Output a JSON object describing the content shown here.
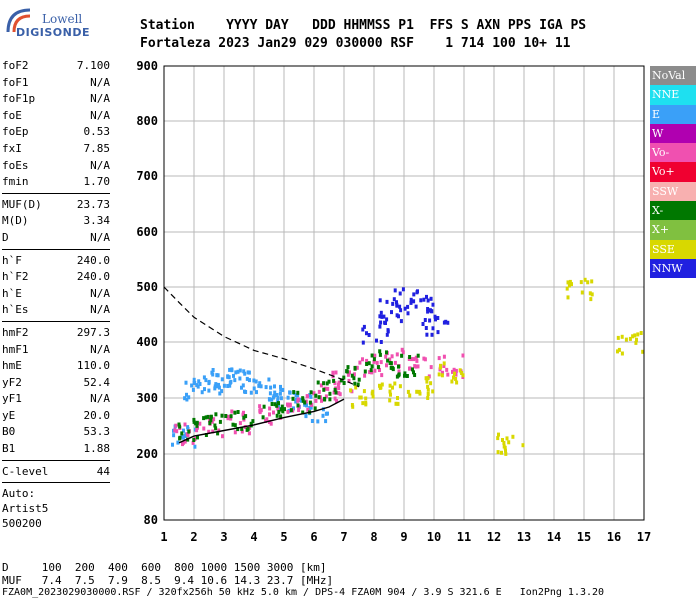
{
  "logo": {
    "line1": "Lowell",
    "line2": "DIGISONDE"
  },
  "header": {
    "labels": "Station    YYYY DAY   DDD HHMMSS P1  FFS S AXN PPS IGA PS",
    "values": "Fortaleza 2023 Jan29 029 030000 RSF    1 714 100 10+ 11"
  },
  "params": [
    {
      "name": "foF2",
      "value": "7.100"
    },
    {
      "name": "foF1",
      "value": "N/A"
    },
    {
      "name": "foF1p",
      "value": "N/A"
    },
    {
      "name": "foE",
      "value": "N/A"
    },
    {
      "name": "foEp",
      "value": "0.53"
    },
    {
      "name": "fxI",
      "value": "7.85"
    },
    {
      "name": "foEs",
      "value": "N/A"
    },
    {
      "name": "fmin",
      "value": "1.70"
    },
    {
      "name": "MUF(D)",
      "value": "23.73",
      "sep": true
    },
    {
      "name": "M(D)",
      "value": "3.34"
    },
    {
      "name": "D",
      "value": "N/A"
    },
    {
      "name": "h`F",
      "value": "240.0",
      "sep": true
    },
    {
      "name": "h`F2",
      "value": "240.0"
    },
    {
      "name": "h`E",
      "value": "N/A"
    },
    {
      "name": "h`Es",
      "value": "N/A"
    },
    {
      "name": "hmF2",
      "value": "297.3",
      "sep": true
    },
    {
      "name": "hmF1",
      "value": "N/A"
    },
    {
      "name": "hmE",
      "value": "110.0"
    },
    {
      "name": "yF2",
      "value": "52.4"
    },
    {
      "name": "yF1",
      "value": "N/A"
    },
    {
      "name": "yE",
      "value": "20.0"
    },
    {
      "name": "B0",
      "value": "53.3"
    },
    {
      "name": "B1",
      "value": "1.88"
    },
    {
      "name": "C-level",
      "value": "44",
      "sep": true
    }
  ],
  "auto": {
    "line1": "Auto:",
    "line2": "Artist5",
    "line3": "500200"
  },
  "legend": [
    {
      "label": "NoVal",
      "color": "#8c8c8c"
    },
    {
      "label": "NNE",
      "color": "#1ee0f0"
    },
    {
      "label": "E",
      "color": "#3aa0f8"
    },
    {
      "label": "W",
      "color": "#b000b0"
    },
    {
      "label": "Vo-",
      "color": "#f050b0"
    },
    {
      "label": "Vo+",
      "color": "#f00030"
    },
    {
      "label": "SSW",
      "color": "#f8b0b0"
    },
    {
      "label": "X-",
      "color": "#007800"
    },
    {
      "label": "X+",
      "color": "#80c040"
    },
    {
      "label": "SSE",
      "color": "#d8d800"
    },
    {
      "label": "NNW",
      "color": "#2020e0"
    }
  ],
  "bottom": {
    "d_line": "D     100  200  400  600  800 1000 1500 3000 [km]",
    "muf_line": "MUF   7.4  7.5  7.9  8.5  9.4 10.6 14.3 23.7 [MHz]",
    "footer": "FZA0M_2023029030000.RSF / 320fx256h 50 kHz 5.0 km / DPS-4 FZA0M 904 / 3.9 S 321.6 E   Ion2Png 1.3.20"
  },
  "chart_data": {
    "type": "scatter",
    "xlim": [
      1,
      17
    ],
    "ylim": [
      80,
      900
    ],
    "x_ticks": [
      "1",
      "2",
      "3",
      "4",
      "5",
      "6",
      "7",
      "8",
      "9",
      "10",
      "11",
      "12",
      "13",
      "14",
      "15",
      "16",
      "17"
    ],
    "y_ticks": [
      "80",
      "200",
      "300",
      "400",
      "500",
      "600",
      "700",
      "800",
      "900"
    ],
    "y_tick_values": [
      80,
      200,
      300,
      400,
      500,
      600,
      700,
      800,
      900
    ],
    "grid": true,
    "series": [
      {
        "name": "E",
        "color": "#3aa0f8",
        "values": [
          [
            1.6,
            235
          ],
          [
            2.0,
            320
          ],
          [
            2.5,
            330
          ],
          [
            3.0,
            340
          ],
          [
            3.5,
            335
          ],
          [
            4.0,
            330
          ],
          [
            4.5,
            320
          ],
          [
            5.0,
            300
          ],
          [
            5.5,
            290
          ],
          [
            6.0,
            280
          ]
        ]
      },
      {
        "name": "Vo-",
        "color": "#f050b0",
        "values": [
          [
            1.7,
            240
          ],
          [
            2.5,
            250
          ],
          [
            3.5,
            260
          ],
          [
            4.5,
            275
          ],
          [
            5.5,
            290
          ],
          [
            6.3,
            310
          ],
          [
            7.0,
            330
          ],
          [
            7.8,
            360
          ],
          [
            8.5,
            370
          ],
          [
            9.5,
            360
          ],
          [
            10.5,
            360
          ]
        ]
      },
      {
        "name": "X-",
        "color": "#007800",
        "values": [
          [
            1.8,
            245
          ],
          [
            2.6,
            255
          ],
          [
            3.6,
            265
          ],
          [
            4.6,
            280
          ],
          [
            5.6,
            295
          ],
          [
            6.5,
            320
          ],
          [
            7.3,
            345
          ],
          [
            8.2,
            370
          ],
          [
            9.0,
            360
          ]
        ]
      },
      {
        "name": "NNW",
        "color": "#2020e0",
        "values": [
          [
            8.0,
            420
          ],
          [
            8.5,
            460
          ],
          [
            9.0,
            480
          ],
          [
            9.5,
            470
          ],
          [
            10.0,
            430
          ]
        ]
      },
      {
        "name": "SSE",
        "color": "#d8d800",
        "values": [
          [
            7.5,
            305
          ],
          [
            8.5,
            310
          ],
          [
            9.5,
            320
          ],
          [
            10.5,
            350
          ],
          [
            12.5,
            220
          ],
          [
            14.8,
            500
          ],
          [
            16.5,
            400
          ]
        ]
      }
    ],
    "trace_profile": [
      [
        1.5,
        220
      ],
      [
        2,
        232
      ],
      [
        3,
        242
      ],
      [
        4,
        252
      ],
      [
        5,
        265
      ],
      [
        6,
        276
      ],
      [
        6.5,
        284
      ],
      [
        7,
        298
      ]
    ],
    "trace_dashed": [
      [
        1,
        500
      ],
      [
        1.5,
        472
      ],
      [
        2,
        445
      ],
      [
        3,
        410
      ],
      [
        4,
        385
      ],
      [
        5,
        370
      ],
      [
        6,
        352
      ],
      [
        7,
        332
      ],
      [
        7.5,
        320
      ]
    ]
  }
}
